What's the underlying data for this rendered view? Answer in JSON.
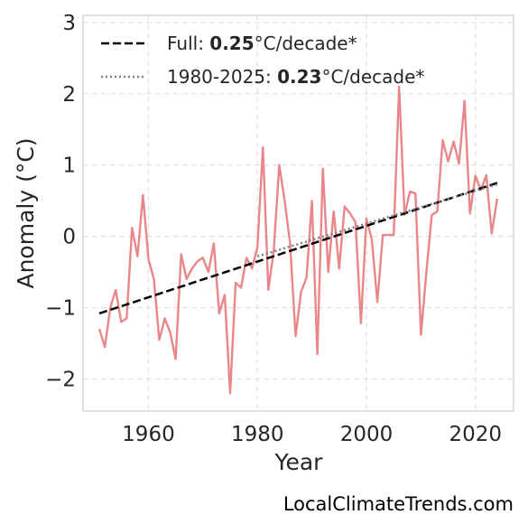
{
  "chart_data": {
    "type": "line",
    "xlabel": "Year",
    "ylabel": "Anomaly (°C)",
    "xlim": [
      1948,
      2027
    ],
    "ylim": [
      -2.45,
      3.1
    ],
    "x_ticks": [
      1960,
      1980,
      2000,
      2020
    ],
    "y_ticks": [
      -2,
      -1,
      0,
      1,
      2,
      3
    ],
    "y_tick_labels": [
      "−2",
      "−1",
      "0",
      "1",
      "2",
      "3"
    ],
    "grid": true,
    "legend_position": "top-left",
    "series": [
      {
        "color": "#e8868a",
        "x": [
          1951,
          1952,
          1953,
          1954,
          1955,
          1956,
          1957,
          1958,
          1959,
          1960,
          1961,
          1962,
          1963,
          1964,
          1965,
          1966,
          1967,
          1968,
          1969,
          1970,
          1971,
          1972,
          1973,
          1974,
          1975,
          1976,
          1977,
          1978,
          1979,
          1980,
          1981,
          1982,
          1983,
          1984,
          1985,
          1986,
          1987,
          1988,
          1989,
          1990,
          1991,
          1992,
          1993,
          1994,
          1995,
          1996,
          1997,
          1998,
          1999,
          2000,
          2001,
          2002,
          2003,
          2004,
          2005,
          2006,
          2007,
          2008,
          2009,
          2010,
          2011,
          2012,
          2013,
          2014,
          2015,
          2016,
          2017,
          2018,
          2019,
          2020,
          2021,
          2022,
          2023,
          2024
        ],
        "values": [
          -1.3,
          -1.55,
          -1.0,
          -0.75,
          -1.2,
          -1.15,
          0.12,
          -0.28,
          0.58,
          -0.32,
          -0.6,
          -1.45,
          -1.15,
          -1.35,
          -1.72,
          -0.25,
          -0.6,
          -0.45,
          -0.35,
          -0.3,
          -0.5,
          -0.1,
          -1.08,
          -0.82,
          -2.2,
          -0.65,
          -0.72,
          -0.3,
          -0.45,
          -0.15,
          1.25,
          -0.75,
          -0.2,
          1.0,
          0.5,
          -0.1,
          -1.4,
          -0.78,
          -0.58,
          0.5,
          -1.65,
          0.95,
          -0.5,
          0.35,
          -0.45,
          0.42,
          0.32,
          0.2,
          -1.22,
          0.25,
          -0.05,
          -0.92,
          0.02,
          0.02,
          0.02,
          2.1,
          0.3,
          0.63,
          0.6,
          -1.38,
          -0.5,
          0.3,
          0.35,
          1.35,
          1.05,
          1.33,
          1.02,
          1.9,
          0.32,
          0.85,
          0.65,
          0.86,
          0.04,
          0.53
        ]
      },
      {
        "name": "Full: 0.25°C/decade*",
        "style": "dashed",
        "color": "#000000",
        "x": [
          1951,
          2024
        ],
        "values": [
          -1.08,
          0.75
        ]
      },
      {
        "name": "1980-2025: 0.23°C/decade*",
        "style": "dotted",
        "color": "#808080",
        "x": [
          1980,
          2024
        ],
        "values": [
          -0.28,
          0.73
        ]
      }
    ]
  },
  "legend": {
    "full": {
      "prefix": "Full: ",
      "value": "0.25",
      "suffix": "°C/decade*"
    },
    "recent": {
      "prefix": "1980-2025: ",
      "value": "0.23",
      "suffix": "°C/decade*"
    }
  },
  "watermark": "LocalClimateTrends.com"
}
